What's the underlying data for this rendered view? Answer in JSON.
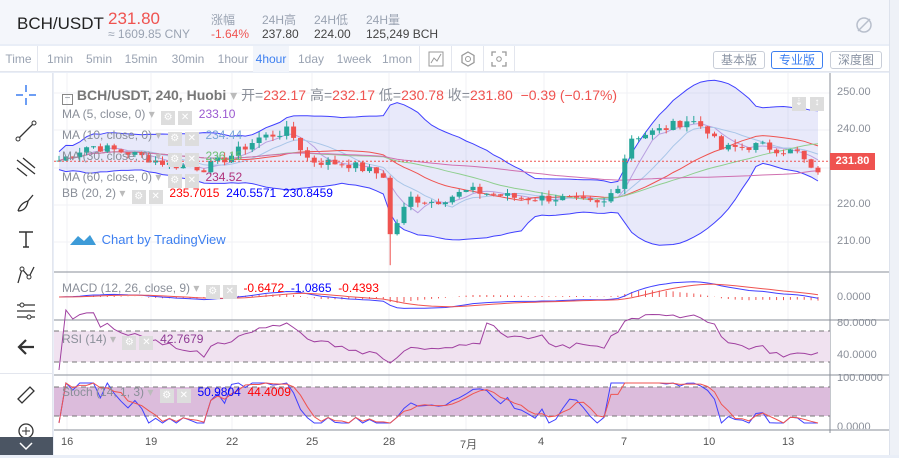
{
  "header": {
    "pair": "BCH/USDT",
    "price": "231.80",
    "cny": "≈ 1609.85 CNY",
    "stats": [
      {
        "label": "涨幅",
        "value": "-1.64%"
      },
      {
        "label": "24H高",
        "value": "237.80"
      },
      {
        "label": "24H低",
        "value": "224.00"
      },
      {
        "label": "24H量",
        "value": "125,249 BCH"
      }
    ]
  },
  "toolbar": {
    "timeframes": [
      "Time",
      "1min",
      "5min",
      "15min",
      "30min",
      "1hour",
      "4hour",
      "1day",
      "1week",
      "1mon"
    ],
    "active": "4hour",
    "views": [
      "基本版",
      "专业版",
      "深度图"
    ],
    "active_view": "专业版"
  },
  "legend": {
    "symbol": "BCH/USDT, 240, Huobi",
    "open_label": "开=",
    "open": "232.17",
    "high_label": "高=",
    "high": "232.17",
    "low_label": "低=",
    "low": "230.78",
    "close_label": "收=",
    "close": "231.80",
    "change": "−0.39 (−0.17%)",
    "ma": [
      {
        "label": "MA (5, close, 0)",
        "value": "233.10",
        "color": "#9b59d0"
      },
      {
        "label": "MA (10, close, 0)",
        "value": "234.44",
        "color": "#7aa7d8"
      },
      {
        "label": "MA (30, close, 0)",
        "value": "236.15",
        "color": "#6fbf73"
      },
      {
        "label": "MA (60, close, 0)",
        "value": "234.52",
        "color": "#b0307a"
      }
    ],
    "bb": {
      "label": "BB (20, 2)",
      "basis": "235.7015",
      "upper": "240.5571",
      "lower": "230.8459"
    },
    "watermark": "Chart by TradingView"
  },
  "macd": {
    "label": "MACD (12, 26, close, 9)",
    "v1": "-0.6472",
    "v2": "-1.0865",
    "v3": "-0.4393"
  },
  "rsi": {
    "label": "RSI (14)",
    "value": "42.7679"
  },
  "stoch": {
    "label": "Stoch (14, 1, 3)",
    "k": "50.9804",
    "d": "44.4009"
  },
  "price_axis": [
    "250.00",
    "240.00",
    "220.00",
    "210.00"
  ],
  "last_price": "231.80",
  "macd_axis": [
    "0.0000"
  ],
  "rsi_axis": [
    "80.0000",
    "40.0000"
  ],
  "stoch_axis": [
    "100.0000",
    "0.0000"
  ],
  "x_axis": [
    "16",
    "19",
    "22",
    "25",
    "28",
    "7月",
    "4",
    "7",
    "10",
    "13"
  ],
  "colors": {
    "up": "#26a69a",
    "down": "#ef5350",
    "accent": "#3d7ff0"
  }
}
